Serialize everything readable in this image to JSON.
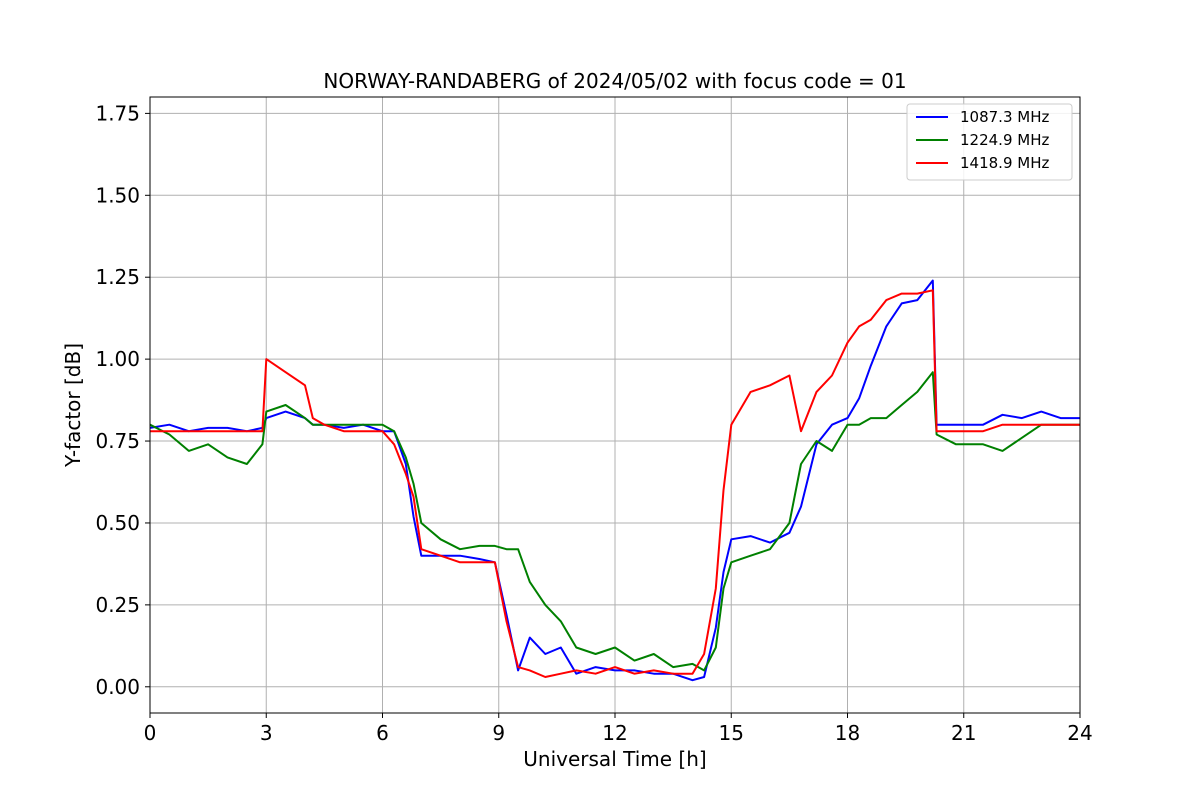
{
  "chart_data": {
    "type": "line",
    "title": "NORWAY-RANDABERG of 2024/05/02 with focus code = 01",
    "xlabel": "Universal Time [h]",
    "ylabel": "Y-factor [dB]",
    "xlim": [
      0,
      24
    ],
    "ylim": [
      -0.08,
      1.8
    ],
    "xticks": [
      0,
      3,
      6,
      9,
      12,
      15,
      18,
      21,
      24
    ],
    "xtick_labels": [
      "0",
      "3",
      "6",
      "9",
      "12",
      "15",
      "18",
      "21",
      "24"
    ],
    "yticks": [
      0.0,
      0.25,
      0.5,
      0.75,
      1.0,
      1.25,
      1.5,
      1.75
    ],
    "ytick_labels": [
      "0.00",
      "0.25",
      "0.50",
      "0.75",
      "1.00",
      "1.25",
      "1.50",
      "1.75"
    ],
    "grid": true,
    "legend_position": "top-right",
    "series": [
      {
        "name": "1087.3 MHz",
        "color": "#0000ff",
        "x": [
          0,
          0.5,
          1,
          1.5,
          2,
          2.5,
          2.9,
          3.0,
          3.5,
          4.0,
          4.2,
          4.5,
          5,
          5.5,
          6,
          6.3,
          6.6,
          6.8,
          7.0,
          7.5,
          8,
          8.5,
          8.9,
          9.2,
          9.5,
          9.8,
          10.2,
          10.6,
          11,
          11.5,
          12,
          12.5,
          13,
          13.5,
          14,
          14.3,
          14.6,
          14.8,
          15,
          15.5,
          16,
          16.5,
          16.8,
          17.2,
          17.6,
          18,
          18.3,
          18.6,
          19,
          19.4,
          19.8,
          20.2,
          20.3,
          20.8,
          21.5,
          22,
          22.5,
          23,
          23.5,
          24
        ],
        "y": [
          0.79,
          0.8,
          0.78,
          0.79,
          0.79,
          0.78,
          0.79,
          0.82,
          0.84,
          0.82,
          0.8,
          0.8,
          0.79,
          0.8,
          0.78,
          0.78,
          0.68,
          0.52,
          0.4,
          0.4,
          0.4,
          0.39,
          0.38,
          0.22,
          0.05,
          0.15,
          0.1,
          0.12,
          0.04,
          0.06,
          0.05,
          0.05,
          0.04,
          0.04,
          0.02,
          0.03,
          0.18,
          0.35,
          0.45,
          0.46,
          0.44,
          0.47,
          0.55,
          0.74,
          0.8,
          0.82,
          0.88,
          0.98,
          1.1,
          1.17,
          1.18,
          1.24,
          0.8,
          0.8,
          0.8,
          0.83,
          0.82,
          0.84,
          0.82,
          0.82
        ]
      },
      {
        "name": "1224.9 MHz",
        "color": "#008000",
        "x": [
          0,
          0.5,
          1,
          1.5,
          2,
          2.5,
          2.9,
          3.0,
          3.5,
          4.0,
          4.2,
          4.5,
          5,
          5.5,
          6,
          6.3,
          6.6,
          6.8,
          7.0,
          7.5,
          8,
          8.5,
          8.9,
          9.2,
          9.5,
          9.8,
          10.2,
          10.6,
          11,
          11.5,
          12,
          12.5,
          13,
          13.5,
          14,
          14.3,
          14.6,
          14.8,
          15,
          15.5,
          16,
          16.5,
          16.8,
          17.2,
          17.6,
          18,
          18.3,
          18.6,
          19,
          19.4,
          19.8,
          20.2,
          20.3,
          20.8,
          21.5,
          22,
          22.5,
          23,
          23.5,
          24
        ],
        "y": [
          0.8,
          0.77,
          0.72,
          0.74,
          0.7,
          0.68,
          0.74,
          0.84,
          0.86,
          0.82,
          0.8,
          0.8,
          0.8,
          0.8,
          0.8,
          0.78,
          0.7,
          0.62,
          0.5,
          0.45,
          0.42,
          0.43,
          0.43,
          0.42,
          0.42,
          0.32,
          0.25,
          0.2,
          0.12,
          0.1,
          0.12,
          0.08,
          0.1,
          0.06,
          0.07,
          0.05,
          0.12,
          0.3,
          0.38,
          0.4,
          0.42,
          0.5,
          0.68,
          0.75,
          0.72,
          0.8,
          0.8,
          0.82,
          0.82,
          0.86,
          0.9,
          0.96,
          0.77,
          0.74,
          0.74,
          0.72,
          0.76,
          0.8,
          0.8,
          0.8
        ]
      },
      {
        "name": "1418.9 MHz",
        "color": "#ff0000",
        "x": [
          0,
          0.5,
          1,
          1.5,
          2,
          2.5,
          2.9,
          3.0,
          3.5,
          4.0,
          4.2,
          4.5,
          5,
          5.5,
          6,
          6.3,
          6.6,
          6.8,
          7.0,
          7.5,
          8,
          8.5,
          8.9,
          9.2,
          9.5,
          9.8,
          10.2,
          10.6,
          11,
          11.5,
          12,
          12.5,
          13,
          13.5,
          14,
          14.3,
          14.6,
          14.8,
          15,
          15.5,
          16,
          16.5,
          16.8,
          17.2,
          17.6,
          18,
          18.3,
          18.6,
          19,
          19.4,
          19.8,
          20.2,
          20.3,
          20.8,
          21.5,
          22,
          22.5,
          23,
          23.5,
          24
        ],
        "y": [
          0.78,
          0.78,
          0.78,
          0.78,
          0.78,
          0.78,
          0.78,
          1.0,
          0.96,
          0.92,
          0.82,
          0.8,
          0.78,
          0.78,
          0.78,
          0.74,
          0.65,
          0.58,
          0.42,
          0.4,
          0.38,
          0.38,
          0.38,
          0.2,
          0.06,
          0.05,
          0.03,
          0.04,
          0.05,
          0.04,
          0.06,
          0.04,
          0.05,
          0.04,
          0.04,
          0.1,
          0.3,
          0.6,
          0.8,
          0.9,
          0.92,
          0.95,
          0.78,
          0.9,
          0.95,
          1.05,
          1.1,
          1.12,
          1.18,
          1.2,
          1.2,
          1.21,
          0.78,
          0.78,
          0.78,
          0.8,
          0.8,
          0.8,
          0.8,
          0.8
        ]
      }
    ]
  }
}
